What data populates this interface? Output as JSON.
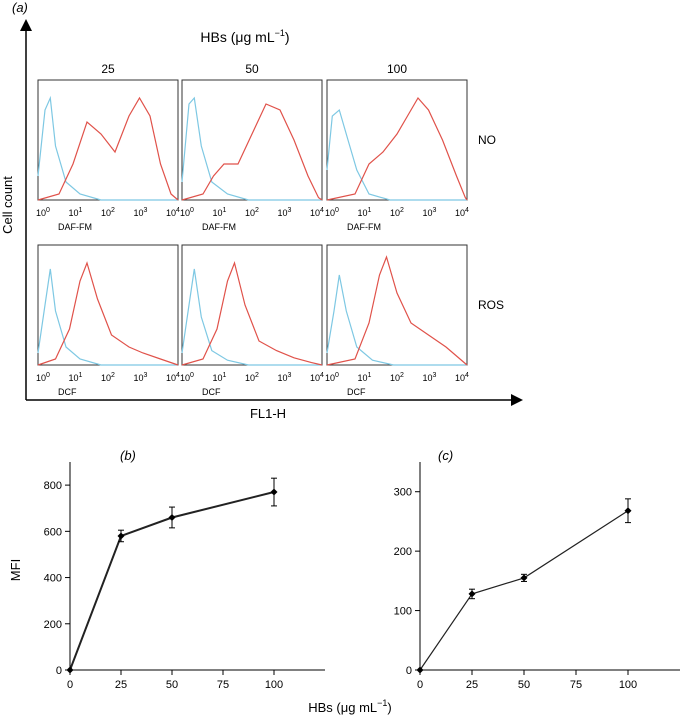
{
  "figure": {
    "panel_a_label": "(a)",
    "panel_b_label": "(b)",
    "panel_c_label": "(c)",
    "top_title": "HBs (μg mL−1)",
    "top_title_main": "HBs (μg mL",
    "top_title_sup": "−1",
    "top_title_close": ")",
    "y_axis_label": "Cell count",
    "x_axis_label": "FL1-H",
    "bottom_axis_label_main": "HBs (μg mL",
    "bottom_axis_label_sup": "−1",
    "bottom_axis_label_close": ")",
    "colors": {
      "control": "#7ec8e3",
      "treated": "#e0524a",
      "axis": "#000000"
    }
  },
  "chart_data": [
    {
      "type": "histogram-grid",
      "columns": [
        "25",
        "50",
        "100"
      ],
      "rows": [
        {
          "label": "NO",
          "probe": "DAF-FM"
        },
        {
          "label": "ROS",
          "probe": "DCF"
        }
      ],
      "x_ticks": [
        {
          "base": "10",
          "exp": "0"
        },
        {
          "base": "10",
          "exp": "1"
        },
        {
          "base": "10",
          "exp": "2"
        },
        {
          "base": "10",
          "exp": "3"
        },
        {
          "base": "10",
          "exp": "4"
        }
      ],
      "xscale": "log",
      "xlim": [
        1,
        10000
      ],
      "series": [
        {
          "color_role": "control",
          "panels": [
            [
              [
                0.0,
                0.2
              ],
              [
                0.2,
                0.75
              ],
              [
                0.35,
                0.85
              ],
              [
                0.5,
                0.45
              ],
              [
                0.8,
                0.15
              ],
              [
                1.2,
                0.05
              ],
              [
                1.8,
                0.0
              ],
              [
                4.0,
                0.0
              ]
            ],
            [
              [
                0.0,
                0.15
              ],
              [
                0.2,
                0.8
              ],
              [
                0.35,
                0.85
              ],
              [
                0.55,
                0.45
              ],
              [
                0.85,
                0.15
              ],
              [
                1.3,
                0.05
              ],
              [
                1.9,
                0.0
              ],
              [
                4.0,
                0.0
              ]
            ],
            [
              [
                0.0,
                0.25
              ],
              [
                0.15,
                0.7
              ],
              [
                0.35,
                0.75
              ],
              [
                0.6,
                0.5
              ],
              [
                0.85,
                0.25
              ],
              [
                1.2,
                0.05
              ],
              [
                1.8,
                0.0
              ],
              [
                4.0,
                0.0
              ]
            ],
            [
              [
                0.0,
                0.1
              ],
              [
                0.2,
                0.5
              ],
              [
                0.35,
                0.8
              ],
              [
                0.5,
                0.45
              ],
              [
                0.8,
                0.15
              ],
              [
                1.2,
                0.05
              ],
              [
                1.8,
                0.0
              ],
              [
                4.0,
                0.0
              ]
            ],
            [
              [
                0.0,
                0.1
              ],
              [
                0.2,
                0.5
              ],
              [
                0.35,
                0.8
              ],
              [
                0.55,
                0.4
              ],
              [
                0.85,
                0.12
              ],
              [
                1.3,
                0.04
              ],
              [
                1.9,
                0.0
              ],
              [
                4.0,
                0.0
              ]
            ],
            [
              [
                0.0,
                0.1
              ],
              [
                0.2,
                0.45
              ],
              [
                0.35,
                0.75
              ],
              [
                0.55,
                0.45
              ],
              [
                0.85,
                0.15
              ],
              [
                1.3,
                0.04
              ],
              [
                1.9,
                0.0
              ],
              [
                4.0,
                0.0
              ]
            ]
          ]
        },
        {
          "color_role": "treated",
          "panels": [
            [
              [
                0.0,
                0.0
              ],
              [
                0.6,
                0.05
              ],
              [
                1.0,
                0.3
              ],
              [
                1.4,
                0.65
              ],
              [
                1.8,
                0.55
              ],
              [
                2.2,
                0.4
              ],
              [
                2.6,
                0.7
              ],
              [
                2.9,
                0.85
              ],
              [
                3.2,
                0.7
              ],
              [
                3.5,
                0.3
              ],
              [
                3.8,
                0.05
              ],
              [
                4.0,
                0.0
              ]
            ],
            [
              [
                0.0,
                0.0
              ],
              [
                0.6,
                0.05
              ],
              [
                0.9,
                0.2
              ],
              [
                1.2,
                0.3
              ],
              [
                1.6,
                0.3
              ],
              [
                2.0,
                0.55
              ],
              [
                2.4,
                0.8
              ],
              [
                2.8,
                0.75
              ],
              [
                3.2,
                0.5
              ],
              [
                3.6,
                0.2
              ],
              [
                3.9,
                0.02
              ],
              [
                4.0,
                0.0
              ]
            ],
            [
              [
                0.0,
                0.0
              ],
              [
                0.8,
                0.05
              ],
              [
                1.2,
                0.3
              ],
              [
                1.6,
                0.4
              ],
              [
                2.0,
                0.55
              ],
              [
                2.3,
                0.7
              ],
              [
                2.6,
                0.85
              ],
              [
                2.9,
                0.75
              ],
              [
                3.3,
                0.5
              ],
              [
                3.7,
                0.2
              ],
              [
                3.95,
                0.02
              ],
              [
                4.0,
                0.0
              ]
            ],
            [
              [
                0.0,
                0.0
              ],
              [
                0.5,
                0.05
              ],
              [
                0.9,
                0.3
              ],
              [
                1.2,
                0.7
              ],
              [
                1.4,
                0.85
              ],
              [
                1.7,
                0.55
              ],
              [
                2.1,
                0.25
              ],
              [
                2.6,
                0.15
              ],
              [
                3.0,
                0.1
              ],
              [
                3.5,
                0.05
              ],
              [
                4.0,
                0.0
              ]
            ],
            [
              [
                0.0,
                0.0
              ],
              [
                0.6,
                0.05
              ],
              [
                1.0,
                0.3
              ],
              [
                1.3,
                0.7
              ],
              [
                1.5,
                0.85
              ],
              [
                1.8,
                0.5
              ],
              [
                2.2,
                0.2
              ],
              [
                2.7,
                0.12
              ],
              [
                3.2,
                0.06
              ],
              [
                3.7,
                0.02
              ],
              [
                4.0,
                0.0
              ]
            ],
            [
              [
                0.0,
                0.0
              ],
              [
                0.8,
                0.05
              ],
              [
                1.2,
                0.35
              ],
              [
                1.5,
                0.75
              ],
              [
                1.7,
                0.9
              ],
              [
                2.0,
                0.6
              ],
              [
                2.4,
                0.35
              ],
              [
                2.9,
                0.25
              ],
              [
                3.4,
                0.15
              ],
              [
                3.8,
                0.05
              ],
              [
                4.0,
                0.0
              ]
            ]
          ]
        }
      ]
    },
    {
      "type": "line",
      "label": "(b)",
      "x": [
        0,
        25,
        50,
        100
      ],
      "y": [
        0,
        580,
        660,
        770
      ],
      "err": [
        0,
        25,
        45,
        60
      ],
      "xlabel": "HBs (μg mL−1)",
      "ylabel": "MFI",
      "xlim": [
        0,
        125
      ],
      "ylim": [
        0,
        900
      ],
      "x_ticks": [
        0,
        25,
        50,
        75,
        100
      ],
      "y_ticks": [
        0,
        200,
        400,
        600,
        800
      ]
    },
    {
      "type": "line",
      "label": "(c)",
      "x": [
        0,
        25,
        50,
        100
      ],
      "y": [
        0,
        128,
        155,
        268
      ],
      "err": [
        0,
        8,
        6,
        20
      ],
      "xlabel": "HBs (μg mL−1)",
      "ylabel": "",
      "xlim": [
        0,
        125
      ],
      "ylim": [
        0,
        350
      ],
      "x_ticks": [
        0,
        25,
        50,
        75,
        100
      ],
      "y_ticks": [
        0,
        100,
        200,
        300
      ]
    }
  ]
}
